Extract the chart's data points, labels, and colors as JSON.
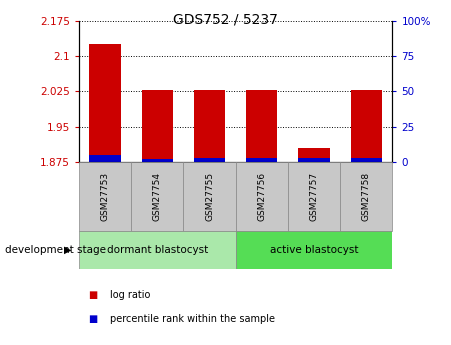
{
  "title": "GDS752 / 5237",
  "samples": [
    "GSM27753",
    "GSM27754",
    "GSM27755",
    "GSM27756",
    "GSM27757",
    "GSM27758"
  ],
  "log_ratio": [
    2.125,
    2.028,
    2.028,
    2.028,
    1.905,
    2.028
  ],
  "percentile_rank": [
    5,
    2,
    3,
    3,
    3,
    3
  ],
  "baseline": 1.875,
  "ylim_left": [
    1.875,
    2.175
  ],
  "ylim_right": [
    0,
    100
  ],
  "yticks_left": [
    1.875,
    1.95,
    2.025,
    2.1,
    2.175
  ],
  "yticks_right": [
    0,
    25,
    50,
    75,
    100
  ],
  "ytick_labels_left": [
    "1.875",
    "1.95",
    "2.025",
    "2.1",
    "2.175"
  ],
  "ytick_labels_right": [
    "0",
    "25",
    "50",
    "75",
    "100%"
  ],
  "groups": [
    {
      "label": "dormant blastocyst",
      "indices": [
        0,
        1,
        2
      ],
      "color": "#aae8aa"
    },
    {
      "label": "active blastocyst",
      "indices": [
        3,
        4,
        5
      ],
      "color": "#55dd55"
    }
  ],
  "group_label": "development stage",
  "bar_color_red": "#cc0000",
  "bar_color_blue": "#0000cc",
  "bar_width": 0.6,
  "bg_color": "#ffffff",
  "tick_bg_color": "#c8c8c8",
  "legend_items": [
    {
      "color": "#cc0000",
      "label": "log ratio"
    },
    {
      "color": "#0000cc",
      "label": "percentile rank within the sample"
    }
  ]
}
